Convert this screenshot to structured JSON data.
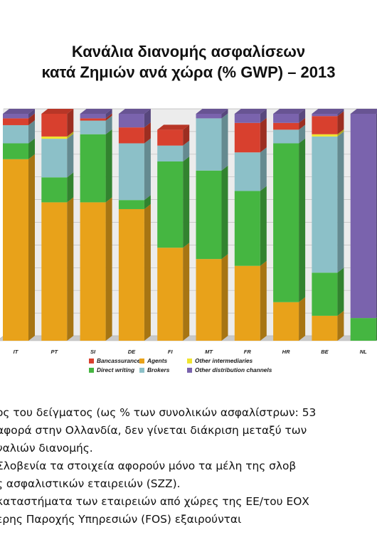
{
  "chart_data": {
    "type": "bar",
    "stacked": true,
    "title": [
      "Κανάλια διανομής ασφαλίσεων",
      "κατά Ζημιών ανά χώρα (% GWP) – 2013"
    ],
    "categories": [
      "IT",
      "PT",
      "SI",
      "DE",
      "FI",
      "MT",
      "FR",
      "HR",
      "BE",
      "NL"
    ],
    "ylim": [
      0,
      100
    ],
    "series": [
      {
        "name": "Agents",
        "color": "#e8a21a",
        "values": [
          80,
          61,
          61,
          58,
          41,
          36,
          33,
          17,
          11,
          0
        ]
      },
      {
        "name": "Direct writing",
        "color": "#45b641",
        "values": [
          7,
          11,
          30,
          4,
          38,
          39,
          33,
          70,
          19,
          10
        ]
      },
      {
        "name": "Brokers",
        "color": "#8cc0c8",
        "values": [
          8,
          17,
          6,
          25,
          7,
          23,
          17,
          6,
          60,
          0
        ]
      },
      {
        "name": "Other intermediaries",
        "color": "#f0e430",
        "values": [
          0,
          1,
          0,
          0,
          0,
          0,
          0,
          0,
          1,
          0
        ]
      },
      {
        "name": "Bancassurance",
        "color": "#d8402e",
        "values": [
          3,
          10,
          1,
          7,
          7,
          0,
          13,
          3,
          8,
          0
        ]
      },
      {
        "name": "Other distribution channels",
        "color": "#7a63ad",
        "values": [
          2,
          0,
          2,
          6,
          0,
          2,
          4,
          4,
          1,
          90
        ]
      }
    ],
    "legend": {
      "position": "bottom",
      "rows": [
        [
          "Bancassurance",
          "Agents",
          "Other intermediaries"
        ],
        [
          "Direct writing",
          "Brokers",
          "Other distribution channels"
        ]
      ]
    },
    "grid": true
  },
  "notes": [
    "ος του δείγματος (ως % των συνολικών ασφαλίστρων: 53",
    "αφορά στην Ολλανδία, δεν γίνεται διάκριση μεταξύ των",
    "ναλιών διανομής.",
    "Σλοβενία τα στοιχεία αφορούν μόνο τα μέλη της σλοβ",
    "ς ασφαλιστικών εταιρειών (SZZ).",
    "καταστήματα των εταιρειών από χώρες της ΕΕ/του ΕΟΧ",
    "ερης Παροχής Υπηρεσιών (FOS) εξαιρούνται"
  ]
}
